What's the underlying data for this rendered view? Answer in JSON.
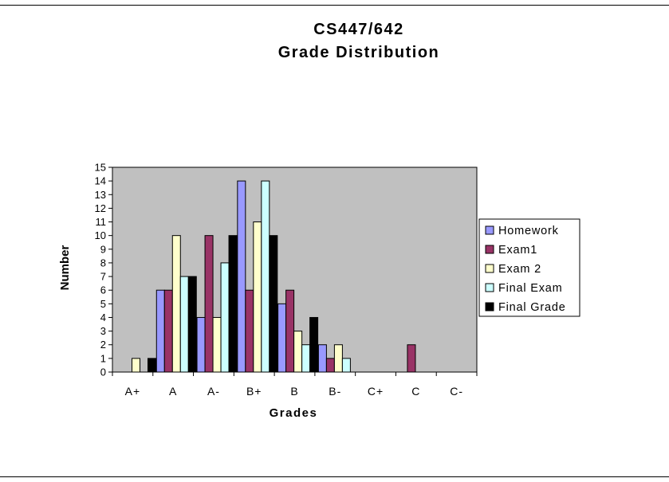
{
  "chart_data": {
    "type": "bar",
    "title_lines": [
      "CS447/642",
      "Grade Distribution"
    ],
    "xlabel": "Grades",
    "ylabel": "Number",
    "ylim": [
      0,
      15
    ],
    "yticks": [
      0,
      1,
      2,
      3,
      4,
      5,
      6,
      7,
      8,
      9,
      10,
      11,
      12,
      13,
      14,
      15
    ],
    "grid": false,
    "legend_position": "right",
    "plot_background": "#c0c0c0",
    "categories": [
      "A+",
      "A",
      "A-",
      "B+",
      "B",
      "B-",
      "C+",
      "C",
      "C-"
    ],
    "series": [
      {
        "name": "Homework",
        "color": "#9999ff",
        "values": [
          0,
          6,
          4,
          14,
          5,
          2,
          0,
          0,
          0
        ]
      },
      {
        "name": "Exam1",
        "color": "#993366",
        "values": [
          0,
          6,
          10,
          6,
          6,
          1,
          0,
          2,
          0
        ]
      },
      {
        "name": "Exam 2",
        "color": "#ffffcc",
        "values": [
          1,
          10,
          4,
          11,
          3,
          2,
          0,
          0,
          0
        ]
      },
      {
        "name": "Final Exam",
        "color": "#ccffff",
        "values": [
          0,
          7,
          8,
          14,
          2,
          1,
          0,
          0,
          0
        ]
      },
      {
        "name": "Final Grade",
        "color": "#000000",
        "values": [
          1,
          7,
          10,
          10,
          4,
          0,
          0,
          0,
          0
        ]
      }
    ]
  }
}
